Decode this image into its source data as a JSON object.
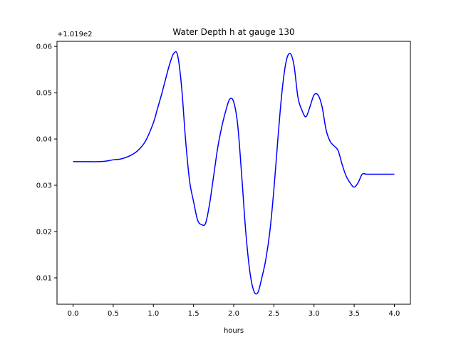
{
  "chart_data": {
    "type": "line",
    "title": "Water Depth h at gauge 130",
    "xlabel": "hours",
    "ylabel": "",
    "offset_label": "+1.019e2",
    "xlim": [
      -0.2,
      4.2
    ],
    "ylim": [
      0.0043,
      0.0611
    ],
    "x_ticks": [
      0.0,
      0.5,
      1.0,
      1.5,
      2.0,
      2.5,
      3.0,
      3.5,
      4.0
    ],
    "x_tick_labels": [
      "0.0",
      "0.5",
      "1.0",
      "1.5",
      "2.0",
      "2.5",
      "3.0",
      "3.5",
      "4.0"
    ],
    "y_ticks": [
      0.01,
      0.02,
      0.03,
      0.04,
      0.05,
      0.06
    ],
    "y_tick_labels": [
      "0.01",
      "0.02",
      "0.03",
      "0.04",
      "0.05",
      "0.06"
    ],
    "grid": false,
    "series": [
      {
        "color": "#0000ff",
        "x": [
          0.0,
          0.1,
          0.2,
          0.3,
          0.4,
          0.5,
          0.6,
          0.7,
          0.8,
          0.9,
          1.0,
          1.05,
          1.1,
          1.15,
          1.2,
          1.25,
          1.3,
          1.35,
          1.4,
          1.45,
          1.5,
          1.55,
          1.6,
          1.65,
          1.7,
          1.75,
          1.8,
          1.85,
          1.9,
          1.95,
          2.0,
          2.05,
          2.1,
          2.15,
          2.2,
          2.25,
          2.3,
          2.35,
          2.4,
          2.45,
          2.5,
          2.55,
          2.6,
          2.65,
          2.7,
          2.75,
          2.8,
          2.85,
          2.9,
          2.95,
          3.0,
          3.05,
          3.1,
          3.15,
          3.2,
          3.25,
          3.3,
          3.35,
          3.4,
          3.45,
          3.5,
          3.55,
          3.6,
          3.65,
          3.7,
          3.75,
          3.8,
          3.85,
          3.9,
          3.95,
          4.0
        ],
        "y": [
          0.0351,
          0.0351,
          0.0351,
          0.0351,
          0.0352,
          0.0355,
          0.0357,
          0.0363,
          0.0374,
          0.0395,
          0.0435,
          0.0465,
          0.0495,
          0.0528,
          0.056,
          0.0584,
          0.0582,
          0.0515,
          0.04,
          0.031,
          0.0265,
          0.0225,
          0.0215,
          0.0218,
          0.026,
          0.032,
          0.038,
          0.0425,
          0.046,
          0.0486,
          0.048,
          0.043,
          0.032,
          0.02,
          0.0115,
          0.0072,
          0.0068,
          0.01,
          0.014,
          0.02,
          0.029,
          0.04,
          0.05,
          0.0565,
          0.0585,
          0.056,
          0.049,
          0.0462,
          0.0448,
          0.047,
          0.0495,
          0.0495,
          0.047,
          0.042,
          0.0395,
          0.0385,
          0.0375,
          0.0345,
          0.032,
          0.0305,
          0.0296,
          0.0306,
          0.0324,
          0.0324,
          0.0324,
          0.0324,
          0.0324,
          0.0324,
          0.0324,
          0.0324,
          0.0324
        ]
      }
    ]
  }
}
